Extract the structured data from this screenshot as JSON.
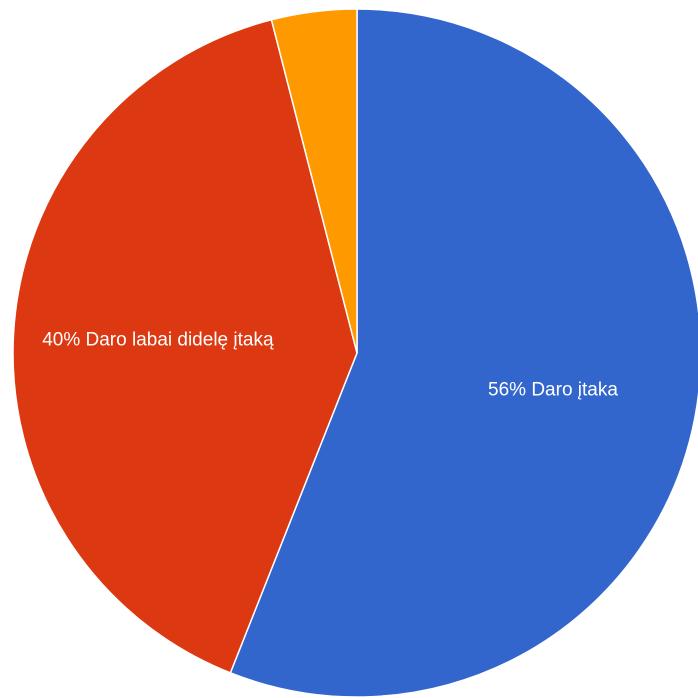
{
  "chart_data": {
    "type": "pie",
    "slices": [
      {
        "label": "Daro įtaka",
        "percent_label": "56%",
        "value": 56,
        "color": "#3366CC"
      },
      {
        "label": "Daro labai didelę įtaką",
        "percent_label": "40%",
        "value": 40,
        "color": "#DC3912"
      },
      {
        "label": "",
        "percent_label": "",
        "value": 4,
        "color": "#FF9900"
      }
    ],
    "start_angle_deg": 0,
    "direction": "clockwise",
    "legend": "none"
  }
}
